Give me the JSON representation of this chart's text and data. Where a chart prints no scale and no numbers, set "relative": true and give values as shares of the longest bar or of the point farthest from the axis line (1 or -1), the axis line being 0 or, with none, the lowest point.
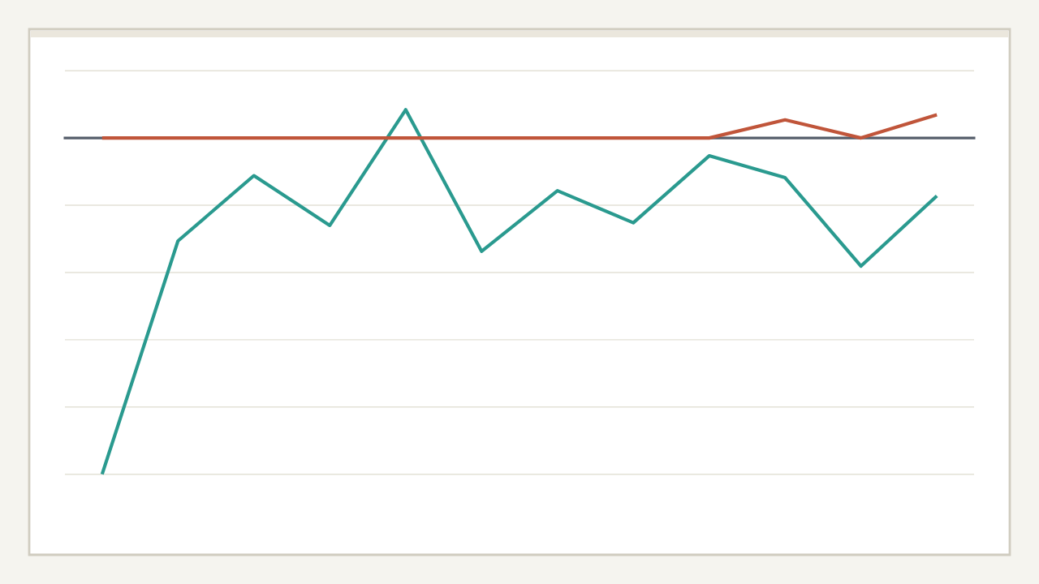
{
  "chart_data": {
    "type": "line",
    "relative": true,
    "categories": [
      null,
      null,
      null,
      null,
      null,
      null,
      null,
      null,
      null,
      null,
      null,
      null
    ],
    "series": [
      {
        "color": "#2a9a8f",
        "values": [
          -1,
          -0.306,
          -0.112,
          -0.26,
          0.084,
          -0.337,
          -0.157,
          -0.252,
          -0.053,
          -0.118,
          -0.381,
          -0.172
        ]
      },
      {
        "color": "#c0553a",
        "values": [
          0,
          0,
          0,
          0,
          0,
          0,
          0,
          0,
          0,
          0.054,
          0,
          0.069
        ]
      }
    ],
    "grid": "y"
  }
}
